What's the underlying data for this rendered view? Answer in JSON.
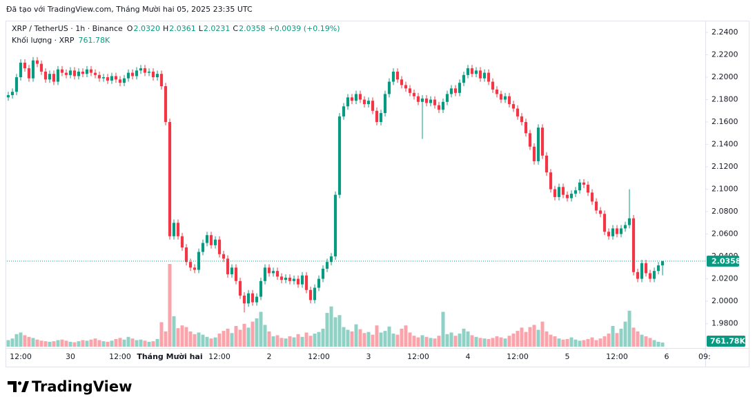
{
  "chart_data": {
    "type": "candlestick",
    "caption": "Đã tạo với TradingView.com, Tháng Mười hai 05, 2025 23:35 UTC",
    "legend": {
      "symbol": "XRP / TetherUS · 1h · Binance",
      "fields": [
        {
          "key": "O",
          "text": "2.0320"
        },
        {
          "key": "H",
          "text": "2.0361"
        },
        {
          "key": "L",
          "text": "2.0231"
        },
        {
          "key": "C",
          "text": "2.0358"
        }
      ],
      "change": "+0.0039 (+0.19%)",
      "volume_title": "Khối lượng · XRP"
    },
    "brand": "TradingView",
    "up_color": "#089981",
    "down_color": "#f23645",
    "last_price": {
      "value": 2.0358,
      "label": "2.0358"
    },
    "last_volume": {
      "value": 761.78,
      "label": "761.78K"
    },
    "xlim": [
      -0.33,
      168.33
    ],
    "xticks": [
      {
        "value": 3,
        "label": "12:00"
      },
      {
        "value": 15,
        "label": "30"
      },
      {
        "value": 27,
        "label": "12:00"
      },
      {
        "value": 39,
        "label": "Tháng Mười hai"
      },
      {
        "value": 51,
        "label": "12:00"
      },
      {
        "value": 63,
        "label": "2"
      },
      {
        "value": 75,
        "label": "12:00"
      },
      {
        "value": 87,
        "label": "3"
      },
      {
        "value": 99,
        "label": "12:00"
      },
      {
        "value": 111,
        "label": "4"
      },
      {
        "value": 123,
        "label": "12:00"
      },
      {
        "value": 135,
        "label": "5"
      },
      {
        "value": 147,
        "label": "12:00"
      },
      {
        "value": 159,
        "label": "6"
      },
      {
        "value": 168,
        "label": "09:"
      }
    ],
    "ylim": [
      1.9594,
      2.2505
    ],
    "yticks": [
      {
        "value": 2.24,
        "label": "2.2400"
      },
      {
        "value": 2.22,
        "label": "2.2200"
      },
      {
        "value": 2.2,
        "label": "2.2000"
      },
      {
        "value": 2.18,
        "label": "2.1800"
      },
      {
        "value": 2.16,
        "label": "2.1600"
      },
      {
        "value": 2.14,
        "label": "2.1400"
      },
      {
        "value": 2.12,
        "label": "2.1200"
      },
      {
        "value": 2.1,
        "label": "2.1000"
      },
      {
        "value": 2.08,
        "label": "2.0800"
      },
      {
        "value": 2.06,
        "label": "2.0600"
      },
      {
        "value": 2.04,
        "label": "2.0400"
      },
      {
        "value": 2.02,
        "label": "2.0200"
      },
      {
        "value": 2.0,
        "label": "2.0000"
      },
      {
        "value": 1.98,
        "label": "1.9800"
      }
    ],
    "grid": false,
    "open": [
      2.182,
      2.184,
      2.187,
      2.2,
      2.213,
      2.208,
      2.199,
      2.215,
      2.212,
      2.205,
      2.198,
      2.203,
      2.196,
      2.207,
      2.204,
      2.202,
      2.206,
      2.201,
      2.205,
      2.203,
      2.207,
      2.204,
      2.202,
      2.199,
      2.2,
      2.197,
      2.201,
      2.198,
      2.195,
      2.199,
      2.204,
      2.201,
      2.206,
      2.208,
      2.204,
      2.205,
      2.2,
      2.203,
      2.192,
      2.16,
      2.058,
      2.07,
      2.058,
      2.048,
      2.035,
      2.03,
      2.028,
      2.044,
      2.052,
      2.059,
      2.05,
      2.055,
      2.042,
      2.038,
      2.024,
      2.03,
      2.018,
      2.005,
      1.998,
      2.007,
      1.999,
      2.004,
      2.018,
      2.03,
      2.025,
      2.027,
      2.022,
      2.019,
      2.021,
      2.018,
      2.02,
      2.015,
      2.023,
      2.01,
      2.001,
      2.012,
      2.02,
      2.029,
      2.035,
      2.04,
      2.095,
      2.165,
      2.174,
      2.182,
      2.179,
      2.185,
      2.18,
      2.176,
      2.179,
      2.17,
      2.16,
      2.168,
      2.185,
      2.196,
      2.205,
      2.198,
      2.193,
      2.19,
      2.186,
      2.183,
      2.178,
      2.181,
      2.177,
      2.18,
      2.175,
      2.171,
      2.178,
      2.185,
      2.19,
      2.186,
      2.195,
      2.202,
      2.208,
      2.203,
      2.206,
      2.199,
      2.204,
      2.196,
      2.189,
      2.185,
      2.18,
      2.183,
      2.176,
      2.172,
      2.165,
      2.16,
      2.15,
      2.138,
      2.125,
      2.155,
      2.13,
      2.115,
      2.1,
      2.093,
      2.102,
      2.095,
      2.092,
      2.096,
      2.099,
      2.106,
      2.104,
      2.097,
      2.089,
      2.081,
      2.078,
      2.062,
      2.058,
      2.065,
      2.06,
      2.065,
      2.068,
      2.074,
      2.026,
      2.02,
      2.034,
      2.025,
      2.02,
      2.027,
      2.032
    ],
    "high": [
      2.187,
      2.19,
      2.203,
      2.216,
      2.216,
      2.211,
      2.218,
      2.218,
      2.215,
      2.208,
      2.206,
      2.206,
      2.21,
      2.21,
      2.207,
      2.209,
      2.209,
      2.208,
      2.208,
      2.21,
      2.21,
      2.207,
      2.205,
      2.203,
      2.203,
      2.204,
      2.204,
      2.201,
      2.202,
      2.207,
      2.207,
      2.209,
      2.211,
      2.211,
      2.208,
      2.208,
      2.206,
      2.206,
      2.195,
      2.163,
      2.073,
      2.073,
      2.061,
      2.051,
      2.038,
      2.033,
      2.047,
      2.055,
      2.062,
      2.062,
      2.058,
      2.058,
      2.045,
      2.041,
      2.033,
      2.033,
      2.021,
      2.008,
      2.01,
      2.01,
      2.007,
      2.021,
      2.033,
      2.033,
      2.03,
      2.03,
      2.025,
      2.024,
      2.024,
      2.023,
      2.023,
      2.026,
      2.026,
      2.013,
      2.015,
      2.023,
      2.032,
      2.038,
      2.043,
      2.098,
      2.168,
      2.177,
      2.185,
      2.185,
      2.188,
      2.188,
      2.183,
      2.182,
      2.182,
      2.173,
      2.171,
      2.188,
      2.199,
      2.208,
      2.208,
      2.201,
      2.196,
      2.193,
      2.189,
      2.186,
      2.184,
      2.184,
      2.183,
      2.183,
      2.178,
      2.181,
      2.188,
      2.193,
      2.193,
      2.198,
      2.205,
      2.211,
      2.211,
      2.209,
      2.209,
      2.207,
      2.207,
      2.199,
      2.192,
      2.188,
      2.186,
      2.186,
      2.179,
      2.175,
      2.168,
      2.163,
      2.153,
      2.141,
      2.158,
      2.158,
      2.133,
      2.118,
      2.103,
      2.105,
      2.105,
      2.098,
      2.099,
      2.102,
      2.109,
      2.109,
      2.107,
      2.1,
      2.092,
      2.084,
      2.081,
      2.065,
      2.068,
      2.068,
      2.068,
      2.071,
      2.1,
      2.077,
      2.029,
      2.037,
      2.037,
      2.028,
      2.03,
      2.035,
      2.0361
    ],
    "low": [
      2.179,
      2.181,
      2.184,
      2.197,
      2.205,
      2.196,
      2.196,
      2.209,
      2.202,
      2.195,
      2.195,
      2.193,
      2.193,
      2.201,
      2.199,
      2.199,
      2.198,
      2.198,
      2.2,
      2.2,
      2.201,
      2.199,
      2.196,
      2.196,
      2.194,
      2.194,
      2.195,
      2.192,
      2.192,
      2.196,
      2.198,
      2.198,
      2.203,
      2.201,
      2.201,
      2.197,
      2.197,
      2.189,
      2.157,
      2.055,
      2.055,
      2.055,
      2.045,
      2.032,
      2.027,
      2.025,
      2.025,
      2.041,
      2.049,
      2.047,
      2.047,
      2.039,
      2.035,
      2.021,
      2.021,
      2.015,
      2.002,
      1.99,
      1.995,
      1.996,
      1.996,
      2.001,
      2.015,
      2.022,
      2.022,
      2.019,
      2.016,
      2.016,
      2.015,
      2.015,
      2.012,
      2.012,
      2.007,
      1.998,
      1.998,
      2.009,
      2.017,
      2.026,
      2.032,
      2.037,
      2.092,
      2.162,
      2.171,
      2.176,
      2.176,
      2.177,
      2.173,
      2.173,
      2.167,
      2.157,
      2.157,
      2.165,
      2.182,
      2.193,
      2.195,
      2.19,
      2.187,
      2.183,
      2.18,
      2.175,
      2.145,
      2.174,
      2.174,
      2.172,
      2.168,
      2.168,
      2.175,
      2.182,
      2.183,
      2.183,
      2.192,
      2.199,
      2.2,
      2.2,
      2.196,
      2.196,
      2.193,
      2.186,
      2.182,
      2.177,
      2.177,
      2.173,
      2.169,
      2.162,
      2.157,
      2.147,
      2.135,
      2.122,
      2.122,
      2.127,
      2.112,
      2.097,
      2.09,
      2.09,
      2.092,
      2.089,
      2.089,
      2.093,
      2.096,
      2.101,
      2.094,
      2.086,
      2.078,
      2.075,
      2.059,
      2.055,
      2.055,
      2.057,
      2.057,
      2.062,
      2.065,
      2.023,
      2.017,
      2.017,
      2.022,
      2.017,
      2.017,
      2.024,
      2.0231
    ],
    "close": [
      2.184,
      2.187,
      2.2,
      2.213,
      2.208,
      2.199,
      2.215,
      2.212,
      2.205,
      2.198,
      2.203,
      2.196,
      2.207,
      2.204,
      2.202,
      2.206,
      2.201,
      2.205,
      2.203,
      2.207,
      2.204,
      2.202,
      2.199,
      2.2,
      2.197,
      2.201,
      2.198,
      2.195,
      2.199,
      2.204,
      2.201,
      2.206,
      2.208,
      2.204,
      2.205,
      2.2,
      2.203,
      2.192,
      2.16,
      2.058,
      2.07,
      2.058,
      2.048,
      2.035,
      2.03,
      2.028,
      2.044,
      2.052,
      2.059,
      2.05,
      2.055,
      2.042,
      2.038,
      2.024,
      2.03,
      2.018,
      2.005,
      1.998,
      2.007,
      1.999,
      2.004,
      2.018,
      2.03,
      2.025,
      2.027,
      2.022,
      2.019,
      2.021,
      2.018,
      2.02,
      2.015,
      2.023,
      2.01,
      2.001,
      2.012,
      2.02,
      2.029,
      2.035,
      2.04,
      2.095,
      2.165,
      2.174,
      2.182,
      2.179,
      2.185,
      2.18,
      2.176,
      2.179,
      2.17,
      2.16,
      2.168,
      2.185,
      2.196,
      2.205,
      2.198,
      2.193,
      2.19,
      2.186,
      2.183,
      2.178,
      2.181,
      2.177,
      2.18,
      2.175,
      2.171,
      2.178,
      2.185,
      2.19,
      2.186,
      2.195,
      2.202,
      2.208,
      2.203,
      2.206,
      2.199,
      2.204,
      2.196,
      2.189,
      2.185,
      2.18,
      2.183,
      2.176,
      2.172,
      2.165,
      2.16,
      2.15,
      2.138,
      2.125,
      2.155,
      2.13,
      2.115,
      2.1,
      2.093,
      2.102,
      2.095,
      2.092,
      2.096,
      2.099,
      2.106,
      2.104,
      2.097,
      2.089,
      2.081,
      2.078,
      2.062,
      2.058,
      2.065,
      2.06,
      2.065,
      2.068,
      2.074,
      2.026,
      2.02,
      2.034,
      2.025,
      2.02,
      2.027,
      2.032,
      2.0358
    ],
    "volume": [
      1200,
      1500,
      2300,
      2600,
      2100,
      1800,
      1600,
      1300,
      1100,
      1000,
      900,
      1000,
      1200,
      1300,
      1100,
      900,
      800,
      1000,
      1200,
      1100,
      1300,
      1500,
      1200,
      1000,
      900,
      1100,
      1400,
      1600,
      1300,
      1800,
      1500,
      1200,
      1300,
      1100,
      900,
      1000,
      1400,
      4500,
      2800,
      15200,
      5600,
      3400,
      3900,
      3600,
      2800,
      2300,
      2600,
      2200,
      1800,
      1500,
      1700,
      2400,
      2900,
      3300,
      2500,
      3800,
      3100,
      4200,
      3500,
      4600,
      5200,
      6400,
      4000,
      2800,
      1900,
      2100,
      1600,
      1500,
      1900,
      1700,
      2300,
      1800,
      2600,
      2000,
      2400,
      2700,
      3300,
      6200,
      7400,
      5400,
      5800,
      3600,
      3100,
      2800,
      4100,
      3200,
      2500,
      2700,
      2200,
      3900,
      2600,
      2900,
      3700,
      2400,
      2200,
      3300,
      3900,
      2600,
      2000,
      1700,
      2100,
      1800,
      1600,
      1500,
      2000,
      6400,
      2300,
      2600,
      2000,
      2400,
      3300,
      2800,
      2100,
      1800,
      1600,
      1500,
      1400,
      1600,
      1900,
      1700,
      1500,
      2000,
      2400,
      2900,
      3500,
      2700,
      3600,
      4000,
      3100,
      4600,
      2800,
      2200,
      1900,
      1500,
      1300,
      1400,
      1700,
      1300,
      1100,
      1200,
      1400,
      1700,
      1200,
      1500,
      1900,
      2400,
      3800,
      2500,
      3300,
      4600,
      6600,
      3500,
      2800,
      2200,
      1900,
      1600,
      1200,
      900,
      761.78
    ]
  }
}
